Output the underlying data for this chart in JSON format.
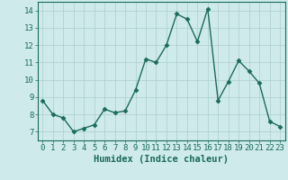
{
  "x": [
    0,
    1,
    2,
    3,
    4,
    5,
    6,
    7,
    8,
    9,
    10,
    11,
    12,
    13,
    14,
    15,
    16,
    17,
    18,
    19,
    20,
    21,
    22,
    23
  ],
  "y": [
    8.8,
    8.0,
    7.8,
    7.0,
    7.2,
    7.4,
    8.3,
    8.1,
    8.2,
    9.4,
    11.2,
    11.0,
    12.0,
    13.8,
    13.5,
    12.2,
    14.1,
    8.8,
    9.9,
    11.1,
    10.5,
    9.8,
    7.6,
    7.3
  ],
  "line_color": "#1a6b5a",
  "marker": "D",
  "marker_size": 2.5,
  "bg_color": "#ceeaea",
  "grid_color": "#aecece",
  "axis_color": "#1a6b5a",
  "tick_color": "#1a6b5a",
  "xlabel": "Humidex (Indice chaleur)",
  "ylim": [
    6.5,
    14.5
  ],
  "xlim": [
    -0.5,
    23.5
  ],
  "yticks": [
    7,
    8,
    9,
    10,
    11,
    12,
    13,
    14
  ],
  "xticks": [
    0,
    1,
    2,
    3,
    4,
    5,
    6,
    7,
    8,
    9,
    10,
    11,
    12,
    13,
    14,
    15,
    16,
    17,
    18,
    19,
    20,
    21,
    22,
    23
  ],
  "tick_fontsize": 6.5,
  "xlabel_fontsize": 7.5
}
